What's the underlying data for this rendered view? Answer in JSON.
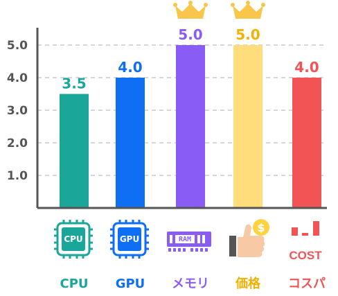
{
  "chart_data": {
    "type": "bar",
    "categories": [
      "CPU",
      "GPU",
      "メモリ",
      "価格",
      "コスパ"
    ],
    "values": [
      3.5,
      4.0,
      5.0,
      5.0,
      4.0
    ],
    "value_labels": [
      "3.5",
      "4.0",
      "5.0",
      "5.0",
      "4.0"
    ],
    "y_ticks": [
      "1.0",
      "2.0",
      "3.0",
      "4.0",
      "5.0"
    ],
    "ylim": [
      0,
      5.0
    ],
    "grid": true,
    "legend": "none",
    "colors": [
      "#1aa79a",
      "#0e6ff5",
      "#8a5cf6",
      "#ffdd7a",
      "#f25355"
    ],
    "label_colors": [
      "#1aa79a",
      "#0e6ff5",
      "#8a5cf6",
      "#f2b100",
      "#f25355"
    ],
    "crowned": [
      "メモリ",
      "価格"
    ],
    "crown_color": "#f7c64a",
    "icons": {
      "cpu": {
        "name": "cpu-chip-icon",
        "text": "CPU"
      },
      "gpu": {
        "name": "gpu-chip-icon",
        "text": "GPU"
      },
      "memory": {
        "name": "ram-module-icon",
        "text": "RAM"
      },
      "price": {
        "name": "thumbs-up-coin-icon",
        "text": "$"
      },
      "cost": {
        "name": "cost-bars-icon",
        "text": "COST"
      }
    }
  }
}
